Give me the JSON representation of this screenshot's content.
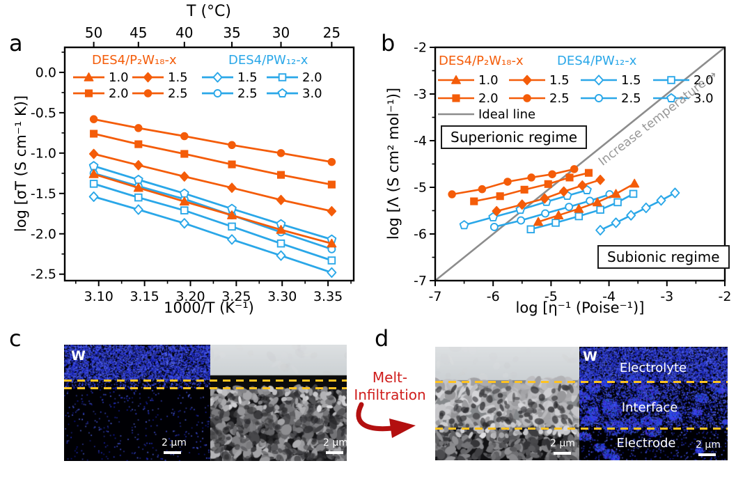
{
  "colors": {
    "orange": "#F45C09",
    "blue": "#2AA7E8",
    "gray_line": "#8C8C8C",
    "gray_text": "#989898",
    "yellow_dash": "#FFC321",
    "red_text": "#CF1D1C",
    "red_arrow": "#B31010",
    "eds_blue": "#1414E0"
  },
  "panels": {
    "a": {
      "label": "a"
    },
    "b": {
      "label": "b"
    },
    "c": {
      "label": "c",
      "eds_label": "W",
      "scalebar_left": "2 μm",
      "scalebar_right": "2 μm"
    },
    "d": {
      "label": "d",
      "eds_label": "W",
      "region_labels": [
        "Electrolyte",
        "Interface",
        "Electrode"
      ],
      "scalebar_left": "2 μm",
      "scalebar_right": "2 μm"
    },
    "melt": {
      "line1": "Melt-",
      "line2": "Infiltration"
    }
  },
  "chart_data": [
    {
      "panel": "a",
      "type": "line",
      "top_xlabel": "T (°C)",
      "xlabel": "1000/T (K⁻¹)",
      "ylabel": "log [σT (S cm⁻¹ K)]",
      "xlim": [
        3.063,
        3.378
      ],
      "ylim": [
        -2.58,
        0.31
      ],
      "x_ticks": [
        3.1,
        3.15,
        3.2,
        3.25,
        3.3,
        3.35
      ],
      "x_tick_labels": [
        "3.10",
        "3.15",
        "3.20",
        "3.25",
        "3.30",
        "3.35"
      ],
      "x_minor_ticks": [
        3.075,
        3.125,
        3.175,
        3.225,
        3.275,
        3.325,
        3.375
      ],
      "y_ticks": [
        0.0,
        -0.5,
        -1.0,
        -1.5,
        -2.0,
        -2.5
      ],
      "y_tick_labels": [
        "0.0",
        "-0.5",
        "-1.0",
        "-1.5",
        "-2.0",
        "-2.5"
      ],
      "y_minor_ticks": [
        0.25,
        -0.25,
        -0.75,
        -1.25,
        -1.75,
        -2.25
      ],
      "top_ticks": [
        3.0946,
        3.1433,
        3.1934,
        3.2452,
        3.2987,
        3.354
      ],
      "top_tick_labels": [
        "50",
        "45",
        "40",
        "35",
        "30",
        "25"
      ],
      "legend_groups": [
        {
          "title": "DES4/P₂W₁₈-x",
          "color": "orange"
        },
        {
          "title": "DES4/PW₁₂-x",
          "color": "blue"
        }
      ],
      "legend_rows": [
        [
          0,
          1,
          4,
          5
        ],
        [
          2,
          3,
          6,
          7
        ]
      ],
      "x": [
        3.0946,
        3.1433,
        3.1934,
        3.2452,
        3.2987,
        3.354
      ],
      "series": [
        {
          "name": "1.0",
          "color": "orange",
          "marker": "triangle",
          "filled": true,
          "y": [
            -1.26,
            -1.43,
            -1.6,
            -1.77,
            -1.95,
            -2.12
          ]
        },
        {
          "name": "1.5",
          "color": "orange",
          "marker": "diamond",
          "filled": true,
          "y": [
            -1.01,
            -1.15,
            -1.29,
            -1.43,
            -1.58,
            -1.72
          ]
        },
        {
          "name": "2.0",
          "color": "orange",
          "marker": "square",
          "filled": true,
          "y": [
            -0.76,
            -0.89,
            -1.01,
            -1.14,
            -1.27,
            -1.39
          ]
        },
        {
          "name": "2.5",
          "color": "orange",
          "marker": "circle",
          "filled": true,
          "y": [
            -0.58,
            -0.69,
            -0.79,
            -0.9,
            -1.0,
            -1.11
          ]
        },
        {
          "name": "1.5",
          "color": "blue",
          "marker": "diamond",
          "filled": false,
          "y": [
            -1.54,
            -1.7,
            -1.87,
            -2.07,
            -2.27,
            -2.48
          ]
        },
        {
          "name": "2.0",
          "color": "blue",
          "marker": "square",
          "filled": false,
          "y": [
            -1.38,
            -1.55,
            -1.71,
            -1.91,
            -2.12,
            -2.33
          ]
        },
        {
          "name": "2.5",
          "color": "blue",
          "marker": "circle",
          "filled": false,
          "y": [
            -1.25,
            -1.41,
            -1.57,
            -1.77,
            -1.98,
            -2.19
          ]
        },
        {
          "name": "3.0",
          "color": "blue",
          "marker": "pentagon",
          "filled": false,
          "y": [
            -1.16,
            -1.33,
            -1.5,
            -1.69,
            -1.88,
            -2.07
          ]
        }
      ]
    },
    {
      "panel": "b",
      "type": "line",
      "xlabel": "log [η⁻¹ (Poise⁻¹)]",
      "ylabel": "log [Λ (S cm² mol⁻¹)]",
      "xlim": [
        -7,
        -2
      ],
      "ylim": [
        -7,
        -2
      ],
      "x_ticks": [
        -7,
        -6,
        -5,
        -4,
        -3,
        -2
      ],
      "x_tick_labels": [
        "-7",
        "-6",
        "-5",
        "-4",
        "-3",
        "-2"
      ],
      "x_minor_ticks": [
        -6.5,
        -5.5,
        -4.5,
        -3.5,
        -2.5
      ],
      "y_ticks": [
        -2,
        -3,
        -4,
        -5,
        -6,
        -7
      ],
      "y_tick_labels": [
        "-2",
        "-3",
        "-4",
        "-5",
        "-6",
        "-7"
      ],
      "y_minor_ticks": [
        -2.5,
        -3.5,
        -4.5,
        -5.5,
        -6.5
      ],
      "ideal_line": {
        "label": "Ideal line",
        "x": [
          -7,
          -2
        ],
        "y": [
          -7,
          -2
        ]
      },
      "annotations": {
        "superionic": "Superionic regime",
        "subionic": "Subionic regime",
        "increase_temperature": "Increase temperature →"
      },
      "legend_groups": [
        {
          "title": "DES4/P₂W₁₈-x",
          "color": "orange"
        },
        {
          "title": "DES4/PW₁₂-x",
          "color": "blue"
        }
      ],
      "legend_rows": [
        [
          0,
          1,
          4,
          5
        ],
        [
          2,
          3,
          6,
          7
        ]
      ],
      "series": [
        {
          "name": "1.0",
          "color": "orange",
          "marker": "triangle",
          "filled": true,
          "x": [
            -5.22,
            -4.87,
            -4.52,
            -4.2,
            -3.88,
            -3.56
          ],
          "y": [
            -5.74,
            -5.6,
            -5.46,
            -5.32,
            -5.14,
            -4.92
          ]
        },
        {
          "name": "1.5",
          "color": "orange",
          "marker": "diamond",
          "filled": true,
          "x": [
            -5.94,
            -5.5,
            -5.11,
            -4.78,
            -4.46,
            -4.15
          ],
          "y": [
            -5.51,
            -5.37,
            -5.24,
            -5.09,
            -4.96,
            -4.84
          ]
        },
        {
          "name": "2.0",
          "color": "orange",
          "marker": "square",
          "filled": true,
          "x": [
            -6.33,
            -5.88,
            -5.46,
            -5.05,
            -4.68,
            -4.35
          ],
          "y": [
            -5.3,
            -5.19,
            -5.05,
            -4.93,
            -4.79,
            -4.69
          ]
        },
        {
          "name": "2.5",
          "color": "orange",
          "marker": "circle",
          "filled": true,
          "x": [
            -6.71,
            -6.19,
            -5.75,
            -5.34,
            -4.98,
            -4.6
          ],
          "y": [
            -5.15,
            -5.04,
            -4.88,
            -4.79,
            -4.72,
            -4.61
          ]
        },
        {
          "name": "1.5",
          "color": "blue",
          "marker": "diamond",
          "filled": false,
          "x": [
            -4.15,
            -3.88,
            -3.62,
            -3.36,
            -3.1,
            -2.86
          ],
          "y": [
            -5.92,
            -5.76,
            -5.6,
            -5.44,
            -5.28,
            -5.12
          ]
        },
        {
          "name": "2.0",
          "color": "blue",
          "marker": "square",
          "filled": false,
          "x": [
            -5.35,
            -4.92,
            -4.52,
            -4.15,
            -3.85,
            -3.58
          ],
          "y": [
            -5.9,
            -5.76,
            -5.62,
            -5.48,
            -5.32,
            -5.14
          ]
        },
        {
          "name": "2.5",
          "color": "blue",
          "marker": "circle",
          "filled": false,
          "x": [
            -5.98,
            -5.52,
            -5.1,
            -4.69,
            -4.33,
            -3.99
          ],
          "y": [
            -5.85,
            -5.71,
            -5.56,
            -5.42,
            -5.29,
            -5.15
          ]
        },
        {
          "name": "3.0",
          "color": "blue",
          "marker": "pentagon",
          "filled": false,
          "x": [
            -6.5,
            -6.0,
            -5.53,
            -5.08,
            -4.72,
            -4.38
          ],
          "y": [
            -5.81,
            -5.64,
            -5.48,
            -5.31,
            -5.18,
            -5.06
          ]
        }
      ]
    }
  ]
}
